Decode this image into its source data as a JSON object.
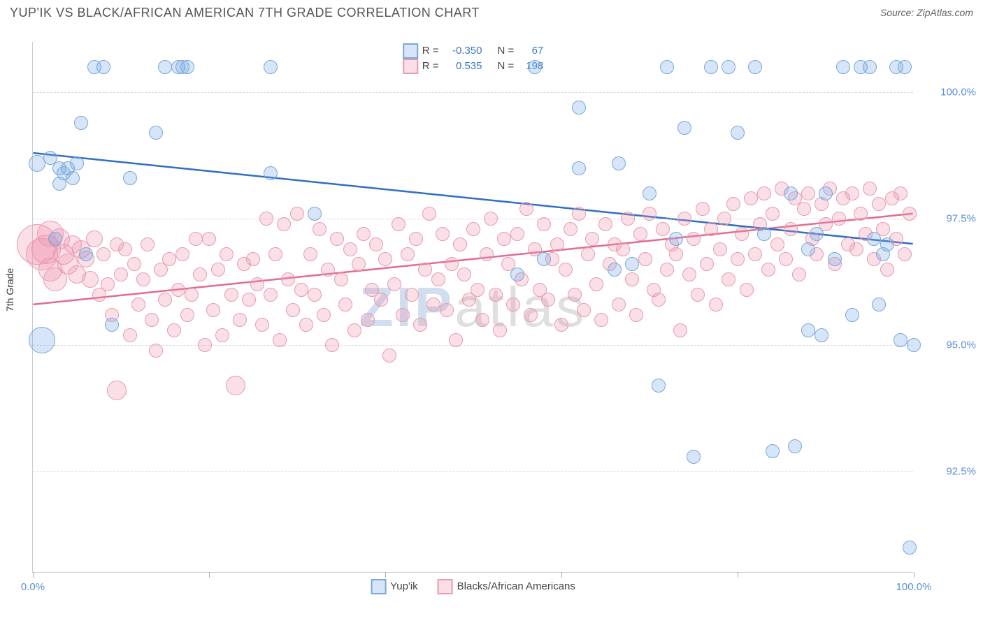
{
  "title": "YUP'IK VS BLACK/AFRICAN AMERICAN 7TH GRADE CORRELATION CHART",
  "source_label": "Source: ZipAtlas.com",
  "y_axis_label": "7th Grade",
  "watermark": {
    "part1": "ZIP",
    "part2": "atlas"
  },
  "chart": {
    "type": "scatter",
    "background_color": "#ffffff",
    "grid_color": "#d8d8d8",
    "axis_color": "#cccccc",
    "tick_label_color": "#5a8fd6",
    "x_domain": [
      0,
      100
    ],
    "y_domain": [
      90.5,
      101.0
    ],
    "x_ticks": [
      0,
      20,
      40,
      60,
      80,
      100
    ],
    "x_tick_labels": {
      "0": "0.0%",
      "100": "100.0%"
    },
    "y_grid": [
      92.5,
      95.0,
      97.5,
      100.0
    ],
    "y_tick_labels": {
      "92.5": "92.5%",
      "95.0": "95.0%",
      "97.5": "97.5%",
      "100.0": "100.0%"
    },
    "title_fontsize": 18,
    "label_fontsize": 14,
    "tick_fontsize": 15
  },
  "series": {
    "blue": {
      "name": "Yup'ik",
      "R": "-0.350",
      "N": "67",
      "fill": "rgba(120,170,230,0.30)",
      "stroke": "#7aa8d8",
      "line_color": "#2f6fc2",
      "line_width": 2.5,
      "default_radius": 9,
      "trend": {
        "x1": 0,
        "y1": 98.8,
        "x2": 100,
        "y2": 97.0
      },
      "points": [
        {
          "x": 0.5,
          "y": 98.6,
          "r": 11
        },
        {
          "x": 1.0,
          "y": 95.1,
          "r": 18
        },
        {
          "x": 2.0,
          "y": 98.7
        },
        {
          "x": 2.5,
          "y": 97.1
        },
        {
          "x": 3.0,
          "y": 98.5
        },
        {
          "x": 3.5,
          "y": 98.4
        },
        {
          "x": 3.0,
          "y": 98.2
        },
        {
          "x": 4.0,
          "y": 98.5
        },
        {
          "x": 4.5,
          "y": 98.3
        },
        {
          "x": 5.0,
          "y": 98.6
        },
        {
          "x": 5.5,
          "y": 99.4
        },
        {
          "x": 6.0,
          "y": 96.8
        },
        {
          "x": 7.0,
          "y": 100.5
        },
        {
          "x": 8.0,
          "y": 100.5
        },
        {
          "x": 9.0,
          "y": 95.4
        },
        {
          "x": 11.0,
          "y": 98.3
        },
        {
          "x": 14.0,
          "y": 99.2
        },
        {
          "x": 15.0,
          "y": 100.5
        },
        {
          "x": 16.5,
          "y": 100.5
        },
        {
          "x": 17.0,
          "y": 100.5
        },
        {
          "x": 17.5,
          "y": 100.5
        },
        {
          "x": 27.0,
          "y": 100.5
        },
        {
          "x": 27.0,
          "y": 98.4
        },
        {
          "x": 32.0,
          "y": 97.6
        },
        {
          "x": 55.0,
          "y": 96.4
        },
        {
          "x": 57.0,
          "y": 100.5
        },
        {
          "x": 58.0,
          "y": 96.7
        },
        {
          "x": 62.0,
          "y": 98.5
        },
        {
          "x": 62.0,
          "y": 99.7
        },
        {
          "x": 66.0,
          "y": 96.5
        },
        {
          "x": 66.5,
          "y": 98.6
        },
        {
          "x": 68.0,
          "y": 96.6
        },
        {
          "x": 70.0,
          "y": 98.0
        },
        {
          "x": 71.0,
          "y": 94.2
        },
        {
          "x": 72.0,
          "y": 100.5
        },
        {
          "x": 73.0,
          "y": 97.1
        },
        {
          "x": 74.0,
          "y": 99.3
        },
        {
          "x": 75.0,
          "y": 92.8
        },
        {
          "x": 77.0,
          "y": 100.5
        },
        {
          "x": 79.0,
          "y": 100.5
        },
        {
          "x": 80.0,
          "y": 99.2
        },
        {
          "x": 82.0,
          "y": 100.5
        },
        {
          "x": 83.0,
          "y": 97.2
        },
        {
          "x": 84.0,
          "y": 92.9
        },
        {
          "x": 86.0,
          "y": 98.0
        },
        {
          "x": 86.5,
          "y": 93.0
        },
        {
          "x": 88.0,
          "y": 95.3
        },
        {
          "x": 88.0,
          "y": 96.9
        },
        {
          "x": 89.0,
          "y": 97.2
        },
        {
          "x": 89.5,
          "y": 95.2
        },
        {
          "x": 90.0,
          "y": 98.0
        },
        {
          "x": 91.0,
          "y": 96.7
        },
        {
          "x": 92.0,
          "y": 100.5
        },
        {
          "x": 93.0,
          "y": 95.6
        },
        {
          "x": 94.0,
          "y": 100.5
        },
        {
          "x": 95.0,
          "y": 100.5
        },
        {
          "x": 95.5,
          "y": 97.1
        },
        {
          "x": 96.0,
          "y": 95.8
        },
        {
          "x": 96.5,
          "y": 96.8
        },
        {
          "x": 97.0,
          "y": 97.0
        },
        {
          "x": 98.0,
          "y": 100.5
        },
        {
          "x": 98.5,
          "y": 95.1
        },
        {
          "x": 99.0,
          "y": 100.5
        },
        {
          "x": 99.5,
          "y": 91.0
        },
        {
          "x": 100.0,
          "y": 95.0
        }
      ]
    },
    "pink": {
      "name": "Blacks/African Americans",
      "R": "0.535",
      "N": "198",
      "fill": "rgba(240,150,175,0.30)",
      "stroke": "#e79ab0",
      "line_color": "#e46a8e",
      "line_width": 2.5,
      "default_radius": 9,
      "trend": {
        "x1": 0,
        "y1": 95.8,
        "x2": 100,
        "y2": 97.6
      },
      "points": [
        {
          "x": 0.5,
          "y": 97.0,
          "r": 28
        },
        {
          "x": 1.0,
          "y": 96.8,
          "r": 22
        },
        {
          "x": 1.5,
          "y": 96.9,
          "r": 20
        },
        {
          "x": 2.0,
          "y": 97.2,
          "r": 18
        },
        {
          "x": 2.0,
          "y": 96.5,
          "r": 16
        },
        {
          "x": 2.5,
          "y": 96.3,
          "r": 16
        },
        {
          "x": 3.0,
          "y": 97.1,
          "r": 14
        },
        {
          "x": 3.5,
          "y": 96.8,
          "r": 14
        },
        {
          "x": 4.0,
          "y": 96.6,
          "r": 14
        },
        {
          "x": 4.5,
          "y": 97.0,
          "r": 12
        },
        {
          "x": 5.0,
          "y": 96.4,
          "r": 12
        },
        {
          "x": 5.5,
          "y": 96.9,
          "r": 12
        },
        {
          "x": 6.0,
          "y": 96.7,
          "r": 11
        },
        {
          "x": 6.5,
          "y": 96.3,
          "r": 11
        },
        {
          "x": 7.0,
          "y": 97.1,
          "r": 11
        },
        {
          "x": 7.5,
          "y": 96.0
        },
        {
          "x": 8.0,
          "y": 96.8
        },
        {
          "x": 8.5,
          "y": 96.2
        },
        {
          "x": 9.0,
          "y": 95.6
        },
        {
          "x": 9.5,
          "y": 97.0
        },
        {
          "x": 9.5,
          "y": 94.1,
          "r": 13
        },
        {
          "x": 10.0,
          "y": 96.4
        },
        {
          "x": 10.5,
          "y": 96.9
        },
        {
          "x": 11.0,
          "y": 95.2
        },
        {
          "x": 11.5,
          "y": 96.6
        },
        {
          "x": 12.0,
          "y": 95.8
        },
        {
          "x": 12.5,
          "y": 96.3
        },
        {
          "x": 13.0,
          "y": 97.0
        },
        {
          "x": 13.5,
          "y": 95.5
        },
        {
          "x": 14.0,
          "y": 94.9
        },
        {
          "x": 14.5,
          "y": 96.5
        },
        {
          "x": 15.0,
          "y": 95.9
        },
        {
          "x": 15.5,
          "y": 96.7
        },
        {
          "x": 16.0,
          "y": 95.3
        },
        {
          "x": 16.5,
          "y": 96.1
        },
        {
          "x": 17.0,
          "y": 96.8
        },
        {
          "x": 17.5,
          "y": 95.6
        },
        {
          "x": 18.0,
          "y": 96.0
        },
        {
          "x": 18.5,
          "y": 97.1
        },
        {
          "x": 19.0,
          "y": 96.4
        },
        {
          "x": 19.5,
          "y": 95.0
        },
        {
          "x": 20.0,
          "y": 97.1
        },
        {
          "x": 20.5,
          "y": 95.7
        },
        {
          "x": 21.0,
          "y": 96.5
        },
        {
          "x": 21.5,
          "y": 95.2
        },
        {
          "x": 22.0,
          "y": 96.8
        },
        {
          "x": 22.5,
          "y": 96.0
        },
        {
          "x": 23.0,
          "y": 94.2,
          "r": 13
        },
        {
          "x": 23.5,
          "y": 95.5
        },
        {
          "x": 24.0,
          "y": 96.6
        },
        {
          "x": 24.5,
          "y": 95.9
        },
        {
          "x": 25.0,
          "y": 96.7
        },
        {
          "x": 25.5,
          "y": 96.2
        },
        {
          "x": 26.0,
          "y": 95.4
        },
        {
          "x": 26.5,
          "y": 97.5
        },
        {
          "x": 27.0,
          "y": 96.0
        },
        {
          "x": 27.5,
          "y": 96.8
        },
        {
          "x": 28.0,
          "y": 95.1
        },
        {
          "x": 28.5,
          "y": 97.4
        },
        {
          "x": 29.0,
          "y": 96.3
        },
        {
          "x": 29.5,
          "y": 95.7
        },
        {
          "x": 30.0,
          "y": 97.6
        },
        {
          "x": 30.5,
          "y": 96.1
        },
        {
          "x": 31.0,
          "y": 95.4
        },
        {
          "x": 31.5,
          "y": 96.8
        },
        {
          "x": 32.0,
          "y": 96.0
        },
        {
          "x": 32.5,
          "y": 97.3
        },
        {
          "x": 33.0,
          "y": 95.6
        },
        {
          "x": 33.5,
          "y": 96.5
        },
        {
          "x": 34.0,
          "y": 95.0
        },
        {
          "x": 34.5,
          "y": 97.1
        },
        {
          "x": 35.0,
          "y": 96.3
        },
        {
          "x": 35.5,
          "y": 95.8
        },
        {
          "x": 36.0,
          "y": 96.9
        },
        {
          "x": 36.5,
          "y": 95.3
        },
        {
          "x": 37.0,
          "y": 96.6
        },
        {
          "x": 37.5,
          "y": 97.2
        },
        {
          "x": 38.0,
          "y": 95.5
        },
        {
          "x": 38.5,
          "y": 96.1
        },
        {
          "x": 39.0,
          "y": 97.0
        },
        {
          "x": 39.5,
          "y": 95.9
        },
        {
          "x": 40.0,
          "y": 96.7
        },
        {
          "x": 40.5,
          "y": 94.8
        },
        {
          "x": 41.0,
          "y": 96.2
        },
        {
          "x": 41.5,
          "y": 97.4
        },
        {
          "x": 42.0,
          "y": 95.6
        },
        {
          "x": 42.5,
          "y": 96.8
        },
        {
          "x": 43.0,
          "y": 96.0
        },
        {
          "x": 43.5,
          "y": 97.1
        },
        {
          "x": 44.0,
          "y": 95.4
        },
        {
          "x": 44.5,
          "y": 96.5
        },
        {
          "x": 45.0,
          "y": 97.6
        },
        {
          "x": 45.5,
          "y": 95.8
        },
        {
          "x": 46.0,
          "y": 96.3
        },
        {
          "x": 46.5,
          "y": 97.2
        },
        {
          "x": 47.0,
          "y": 95.7
        },
        {
          "x": 47.5,
          "y": 96.6
        },
        {
          "x": 48.0,
          "y": 95.1
        },
        {
          "x": 48.5,
          "y": 97.0
        },
        {
          "x": 49.0,
          "y": 96.4
        },
        {
          "x": 49.5,
          "y": 95.9
        },
        {
          "x": 50.0,
          "y": 97.3
        },
        {
          "x": 50.5,
          "y": 96.1
        },
        {
          "x": 51.0,
          "y": 95.5
        },
        {
          "x": 51.5,
          "y": 96.8
        },
        {
          "x": 52.0,
          "y": 97.5
        },
        {
          "x": 52.5,
          "y": 96.0
        },
        {
          "x": 53.0,
          "y": 95.3
        },
        {
          "x": 53.5,
          "y": 97.1
        },
        {
          "x": 54.0,
          "y": 96.6
        },
        {
          "x": 54.5,
          "y": 95.8
        },
        {
          "x": 55.0,
          "y": 97.2
        },
        {
          "x": 55.5,
          "y": 96.3
        },
        {
          "x": 56.0,
          "y": 97.7
        },
        {
          "x": 56.5,
          "y": 95.6
        },
        {
          "x": 57.0,
          "y": 96.9
        },
        {
          "x": 57.5,
          "y": 96.1
        },
        {
          "x": 58.0,
          "y": 97.4
        },
        {
          "x": 58.5,
          "y": 95.9
        },
        {
          "x": 59.0,
          "y": 96.7
        },
        {
          "x": 59.5,
          "y": 97.0
        },
        {
          "x": 60.0,
          "y": 95.4
        },
        {
          "x": 60.5,
          "y": 96.5
        },
        {
          "x": 61.0,
          "y": 97.3
        },
        {
          "x": 61.5,
          "y": 96.0
        },
        {
          "x": 62.0,
          "y": 97.6
        },
        {
          "x": 62.5,
          "y": 95.7
        },
        {
          "x": 63.0,
          "y": 96.8
        },
        {
          "x": 63.5,
          "y": 97.1
        },
        {
          "x": 64.0,
          "y": 96.2
        },
        {
          "x": 64.5,
          "y": 95.5
        },
        {
          "x": 65.0,
          "y": 97.4
        },
        {
          "x": 65.5,
          "y": 96.6
        },
        {
          "x": 66.0,
          "y": 97.0
        },
        {
          "x": 66.5,
          "y": 95.8
        },
        {
          "x": 67.0,
          "y": 96.9
        },
        {
          "x": 67.5,
          "y": 97.5
        },
        {
          "x": 68.0,
          "y": 96.3
        },
        {
          "x": 68.5,
          "y": 95.6
        },
        {
          "x": 69.0,
          "y": 97.2
        },
        {
          "x": 69.5,
          "y": 96.7
        },
        {
          "x": 70.0,
          "y": 97.6
        },
        {
          "x": 70.5,
          "y": 96.1
        },
        {
          "x": 71.0,
          "y": 95.9
        },
        {
          "x": 71.5,
          "y": 97.3
        },
        {
          "x": 72.0,
          "y": 96.5
        },
        {
          "x": 72.5,
          "y": 97.0
        },
        {
          "x": 73.0,
          "y": 96.8
        },
        {
          "x": 73.5,
          "y": 95.3
        },
        {
          "x": 74.0,
          "y": 97.5
        },
        {
          "x": 74.5,
          "y": 96.4
        },
        {
          "x": 75.0,
          "y": 97.1
        },
        {
          "x": 75.5,
          "y": 96.0
        },
        {
          "x": 76.0,
          "y": 97.7
        },
        {
          "x": 76.5,
          "y": 96.6
        },
        {
          "x": 77.0,
          "y": 97.3
        },
        {
          "x": 77.5,
          "y": 95.8
        },
        {
          "x": 78.0,
          "y": 96.9
        },
        {
          "x": 78.5,
          "y": 97.5
        },
        {
          "x": 79.0,
          "y": 96.3
        },
        {
          "x": 79.5,
          "y": 97.8
        },
        {
          "x": 80.0,
          "y": 96.7
        },
        {
          "x": 80.5,
          "y": 97.2
        },
        {
          "x": 81.0,
          "y": 96.1
        },
        {
          "x": 81.5,
          "y": 97.9
        },
        {
          "x": 82.0,
          "y": 96.8
        },
        {
          "x": 82.5,
          "y": 97.4
        },
        {
          "x": 83.0,
          "y": 98.0
        },
        {
          "x": 83.5,
          "y": 96.5
        },
        {
          "x": 84.0,
          "y": 97.6
        },
        {
          "x": 84.5,
          "y": 97.0
        },
        {
          "x": 85.0,
          "y": 98.1
        },
        {
          "x": 85.5,
          "y": 96.7
        },
        {
          "x": 86.0,
          "y": 97.3
        },
        {
          "x": 86.5,
          "y": 97.9
        },
        {
          "x": 87.0,
          "y": 96.4
        },
        {
          "x": 87.5,
          "y": 97.7
        },
        {
          "x": 88.0,
          "y": 98.0
        },
        {
          "x": 88.5,
          "y": 97.1
        },
        {
          "x": 89.0,
          "y": 96.8
        },
        {
          "x": 89.5,
          "y": 97.8
        },
        {
          "x": 90.0,
          "y": 97.4
        },
        {
          "x": 90.5,
          "y": 98.1
        },
        {
          "x": 91.0,
          "y": 96.6
        },
        {
          "x": 91.5,
          "y": 97.5
        },
        {
          "x": 92.0,
          "y": 97.9
        },
        {
          "x": 92.5,
          "y": 97.0
        },
        {
          "x": 93.0,
          "y": 98.0
        },
        {
          "x": 93.5,
          "y": 96.9
        },
        {
          "x": 94.0,
          "y": 97.6
        },
        {
          "x": 94.5,
          "y": 97.2
        },
        {
          "x": 95.0,
          "y": 98.1
        },
        {
          "x": 95.5,
          "y": 96.7
        },
        {
          "x": 96.0,
          "y": 97.8
        },
        {
          "x": 96.5,
          "y": 97.3
        },
        {
          "x": 97.0,
          "y": 96.5
        },
        {
          "x": 97.5,
          "y": 97.9
        },
        {
          "x": 98.0,
          "y": 97.1
        },
        {
          "x": 98.5,
          "y": 98.0
        },
        {
          "x": 99.0,
          "y": 96.8
        },
        {
          "x": 99.5,
          "y": 97.6
        }
      ]
    }
  },
  "legend_stats": {
    "R_label": "R =",
    "N_label": "N ="
  },
  "bottom_legend": {
    "items": [
      "Yup'ik",
      "Blacks/African Americans"
    ]
  }
}
